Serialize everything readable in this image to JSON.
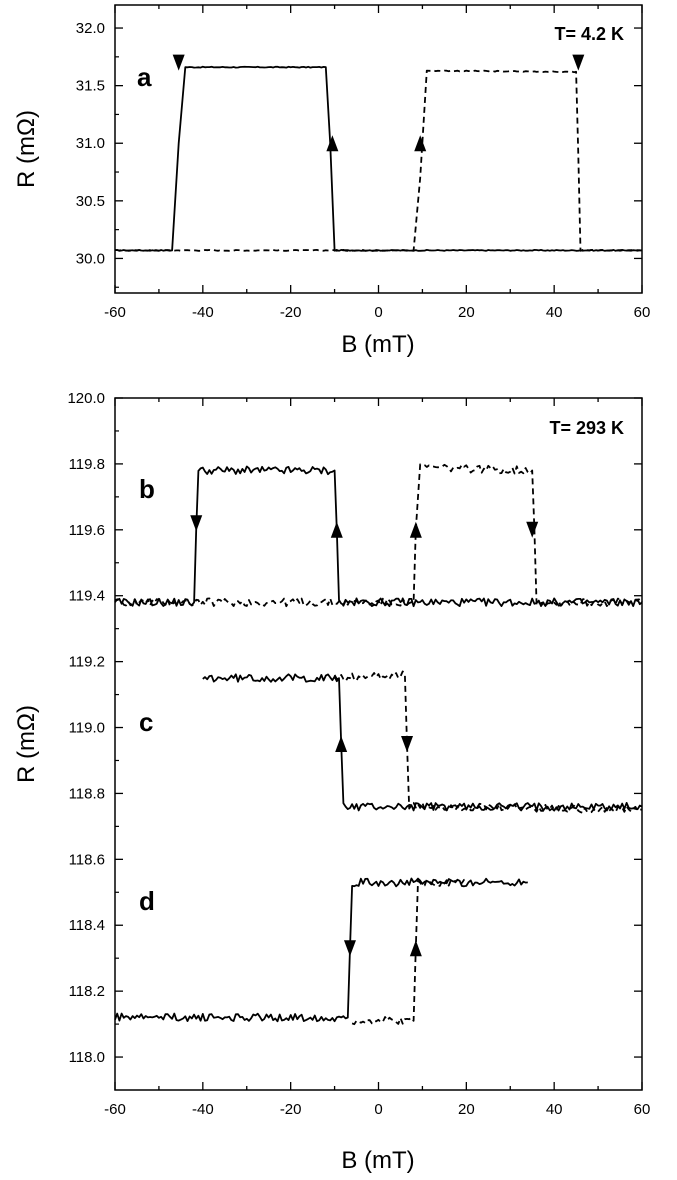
{
  "chart_data": [
    {
      "type": "line",
      "id": "top",
      "xlabel": "B (mT)",
      "ylabel": "R (mΩ)",
      "xlim": [
        -60,
        60
      ],
      "ylim": [
        29.7,
        32.2
      ],
      "xticks": [
        -60,
        -40,
        -20,
        0,
        20,
        40,
        60
      ],
      "yticks": [
        30.0,
        30.5,
        31.0,
        31.5,
        32.0
      ],
      "ytick_decimals": 1,
      "annotation": "T= 4.2 K",
      "panels": [
        {
          "letter": "a",
          "letter_y": 31.6,
          "series": [
            {
              "style": "solid",
              "x": [
                60,
                -45,
                -45.5,
                -46.5,
                -47,
                -60
              ],
              "y": [
                30.07,
                30.07,
                30.8,
                31.66,
                31.66,
                31.66
              ],
              "base": 30.07,
              "base_x": [
                -47,
                60
              ]
            },
            {
              "style": "dashed",
              "x": [
                -60,
                8,
                9.5,
                11,
                45,
                45.5,
                46,
                60
              ],
              "y": [
                30.07,
                30.07,
                30.7,
                31.63,
                31.62,
                30.9,
                30.07,
                30.07
              ],
              "base": 30.07,
              "base_x": [
                -60,
                8
              ]
            }
          ],
          "solid_path": {
            "x": [
              -60,
              -47,
              -45.5,
              -44,
              -12,
              -11,
              -10,
              60
            ],
            "y": [
              30.07,
              30.07,
              31.0,
              31.66,
              31.66,
              31.0,
              30.07,
              30.07
            ]
          },
          "arrows": [
            {
              "x": -45.5,
              "y": 31.7,
              "dir": "down"
            },
            {
              "x": -10.5,
              "y": 31.0,
              "dir": "up"
            },
            {
              "x": 9.5,
              "y": 31.0,
              "dir": "up"
            },
            {
              "x": 45.5,
              "y": 31.7,
              "dir": "down"
            }
          ]
        }
      ]
    },
    {
      "type": "line",
      "id": "bottom",
      "xlabel": "B (mT)",
      "ylabel": "R (mΩ)",
      "xlim": [
        -60,
        60
      ],
      "ylim": [
        117.9,
        120.0
      ],
      "xticks": [
        -60,
        -40,
        -20,
        0,
        20,
        40,
        60
      ],
      "yticks": [
        118.0,
        118.2,
        118.4,
        118.6,
        118.8,
        119.0,
        119.2,
        119.4,
        119.6,
        119.8,
        120.0
      ],
      "ytick_decimals": 1,
      "annotation": "T= 293 K",
      "panels": [
        {
          "letter": "b",
          "letter_y": 119.8,
          "solid": {
            "x": [
              -60,
              -42,
              -41.5,
              -41,
              -10,
              -9.5,
              -9,
              60
            ],
            "y": [
              119.38,
              119.38,
              119.6,
              119.78,
              119.78,
              119.6,
              119.38,
              119.38
            ]
          },
          "dashed": {
            "x": [
              -60,
              8,
              8.5,
              9.5,
              35,
              35.5,
              36,
              60
            ],
            "y": [
              119.38,
              119.38,
              119.6,
              119.79,
              119.78,
              119.6,
              119.38,
              119.38
            ]
          },
          "arrows": [
            {
              "x": -41.5,
              "y": 119.62,
              "dir": "down"
            },
            {
              "x": -9.5,
              "y": 119.6,
              "dir": "up"
            },
            {
              "x": 8.5,
              "y": 119.6,
              "dir": "up"
            },
            {
              "x": 35,
              "y": 119.6,
              "dir": "down"
            }
          ]
        },
        {
          "letter": "c",
          "letter_y": 119.1,
          "solid": {
            "x": [
              -40,
              -9,
              -8.5,
              -8,
              60
            ],
            "y": [
              119.15,
              119.15,
              118.95,
              118.76,
              118.76
            ]
          },
          "dashed": {
            "x": [
              -10,
              6,
              6.5,
              7,
              60
            ],
            "y": [
              119.15,
              119.16,
              118.95,
              118.76,
              118.75
            ]
          },
          "arrows": [
            {
              "x": -8.5,
              "y": 118.95,
              "dir": "up"
            },
            {
              "x": 6.5,
              "y": 118.95,
              "dir": "down"
            }
          ]
        },
        {
          "letter": "d",
          "letter_y": 118.55,
          "solid": {
            "x": [
              -60,
              -7,
              -6.5,
              -6,
              34
            ],
            "y": [
              118.12,
              118.12,
              118.33,
              118.53,
              118.53
            ]
          },
          "dashed": {
            "x": [
              -6,
              8,
              8.5,
              9,
              20
            ],
            "y": [
              118.11,
              118.11,
              118.33,
              118.53,
              118.53
            ]
          },
          "arrows": [
            {
              "x": -6.5,
              "y": 118.33,
              "dir": "down"
            },
            {
              "x": 8.5,
              "y": 118.33,
              "dir": "up"
            }
          ]
        }
      ]
    }
  ]
}
